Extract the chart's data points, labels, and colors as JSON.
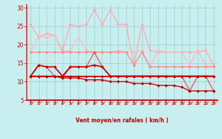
{
  "x": [
    0,
    1,
    2,
    3,
    4,
    5,
    6,
    7,
    8,
    9,
    10,
    11,
    12,
    13,
    14,
    15,
    16,
    17,
    18,
    19,
    20,
    21,
    22,
    23
  ],
  "series": [
    {
      "name": "light_pink_top",
      "color": "#ffaaaa",
      "lw": 1.0,
      "marker": "D",
      "ms": 2.0,
      "values": [
        25.5,
        22.0,
        23.0,
        22.5,
        18.5,
        25.5,
        25.0,
        25.5,
        29.5,
        25.5,
        29.5,
        25.5,
        25.5,
        14.5,
        25.5,
        18.5,
        18.0,
        18.0,
        18.0,
        18.0,
        18.0,
        18.0,
        18.5,
        14.5
      ]
    },
    {
      "name": "light_pink_mid",
      "color": "#ffbbbb",
      "lw": 1.0,
      "marker": "D",
      "ms": 2.0,
      "values": [
        18.0,
        22.5,
        22.0,
        22.5,
        18.0,
        18.5,
        22.0,
        18.5,
        18.0,
        18.0,
        18.0,
        18.5,
        18.0,
        18.0,
        18.5,
        14.0,
        18.5,
        18.0,
        18.0,
        18.0,
        14.5,
        18.5,
        14.5,
        14.0
      ]
    },
    {
      "name": "salmon_mid",
      "color": "#ff8888",
      "lw": 1.0,
      "marker": "D",
      "ms": 2.0,
      "values": [
        18.0,
        18.0,
        18.0,
        18.0,
        18.0,
        18.0,
        18.0,
        18.0,
        18.0,
        18.0,
        18.0,
        18.0,
        18.0,
        14.5,
        18.0,
        14.0,
        14.0,
        14.0,
        14.0,
        14.0,
        14.0,
        14.0,
        14.0,
        14.0
      ]
    },
    {
      "name": "salmon_upper",
      "color": "#ee5555",
      "lw": 1.0,
      "marker": "D",
      "ms": 2.0,
      "values": [
        11.5,
        14.5,
        14.0,
        11.5,
        11.0,
        14.0,
        14.0,
        14.0,
        18.0,
        14.0,
        11.5,
        11.5,
        11.5,
        11.5,
        11.5,
        11.5,
        11.5,
        11.5,
        11.5,
        11.5,
        7.5,
        11.5,
        11.5,
        7.5
      ]
    },
    {
      "name": "dark_red_upper",
      "color": "#cc0000",
      "lw": 1.3,
      "marker": "D",
      "ms": 2.0,
      "values": [
        11.5,
        14.5,
        14.0,
        14.0,
        11.5,
        14.0,
        14.0,
        14.0,
        14.5,
        14.0,
        11.5,
        11.5,
        11.5,
        11.5,
        11.5,
        11.5,
        11.5,
        11.5,
        11.5,
        11.5,
        11.5,
        11.5,
        11.5,
        11.5
      ]
    },
    {
      "name": "dark_red_flat",
      "color": "#cc0000",
      "lw": 1.3,
      "marker": "D",
      "ms": 2.0,
      "values": [
        11.5,
        11.5,
        11.5,
        11.5,
        11.5,
        11.5,
        11.5,
        11.5,
        11.5,
        11.5,
        11.5,
        11.5,
        11.5,
        11.5,
        11.5,
        11.5,
        11.5,
        11.5,
        11.5,
        11.5,
        11.5,
        11.5,
        11.5,
        11.5
      ]
    },
    {
      "name": "dark_red_lower",
      "color": "#bb0000",
      "lw": 1.0,
      "marker": "D",
      "ms": 2.0,
      "values": [
        11.5,
        11.5,
        11.5,
        11.5,
        11.0,
        11.0,
        11.0,
        10.5,
        10.5,
        10.5,
        10.0,
        10.0,
        10.0,
        9.5,
        9.5,
        9.5,
        9.0,
        9.0,
        9.0,
        8.5,
        7.5,
        7.5,
        7.5,
        7.5
      ]
    }
  ],
  "xlabel": "Vent moyen/en rafales ( km/h )",
  "ylim": [
    5,
    31
  ],
  "xlim": [
    -0.5,
    23.5
  ],
  "yticks": [
    5,
    10,
    15,
    20,
    25,
    30
  ],
  "xticks": [
    0,
    1,
    2,
    3,
    4,
    5,
    6,
    7,
    8,
    9,
    10,
    11,
    12,
    13,
    14,
    15,
    16,
    17,
    18,
    19,
    20,
    21,
    22,
    23
  ],
  "bg_color": "#c8eef0",
  "grid_color": "#99cccc",
  "axis_color": "#cc0000",
  "xlabel_color": "#cc0000",
  "tick_color": "#cc0000",
  "arrow_color": "#cc3333",
  "figsize": [
    3.2,
    2.0
  ],
  "dpi": 100
}
